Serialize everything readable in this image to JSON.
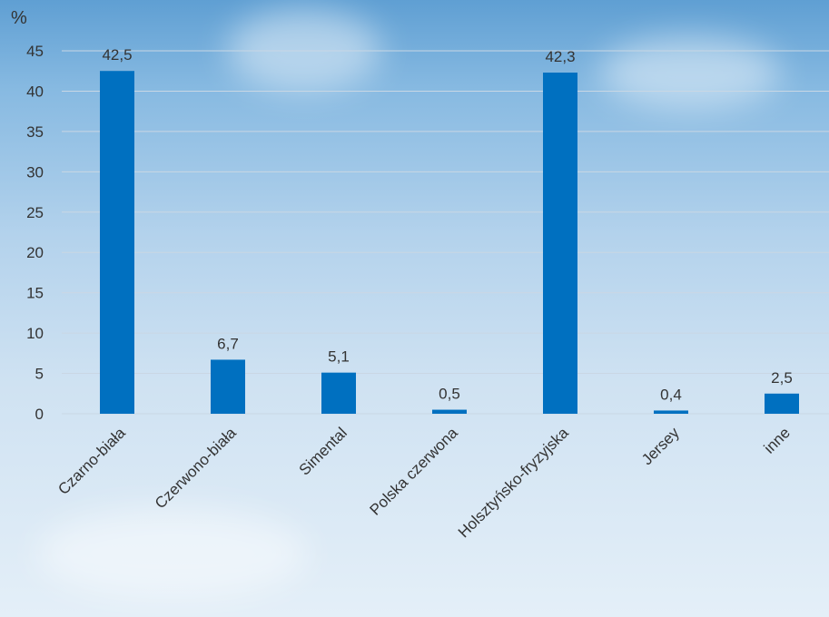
{
  "chart_data": {
    "type": "bar",
    "ylabel": "%",
    "ylim": [
      0,
      45
    ],
    "yticks": [
      0,
      5,
      10,
      15,
      20,
      25,
      30,
      35,
      40,
      45
    ],
    "grid": true,
    "categories": [
      "Czarno-biała",
      "Czerwono-biała",
      "Simental",
      "Polska czerwona",
      "Holsztyńsko-fryzyjska",
      "Jersey",
      "inne"
    ],
    "values": [
      42.5,
      6.7,
      5.1,
      0.5,
      42.3,
      0.4,
      2.5
    ],
    "data_labels": [
      "42,5",
      "6,7",
      "5,1",
      "0,5",
      "42,3",
      "0,4",
      "2,5"
    ],
    "colors": {
      "bar": "#0070c0",
      "grid": "#c9d7e4",
      "text": "#333333"
    }
  }
}
